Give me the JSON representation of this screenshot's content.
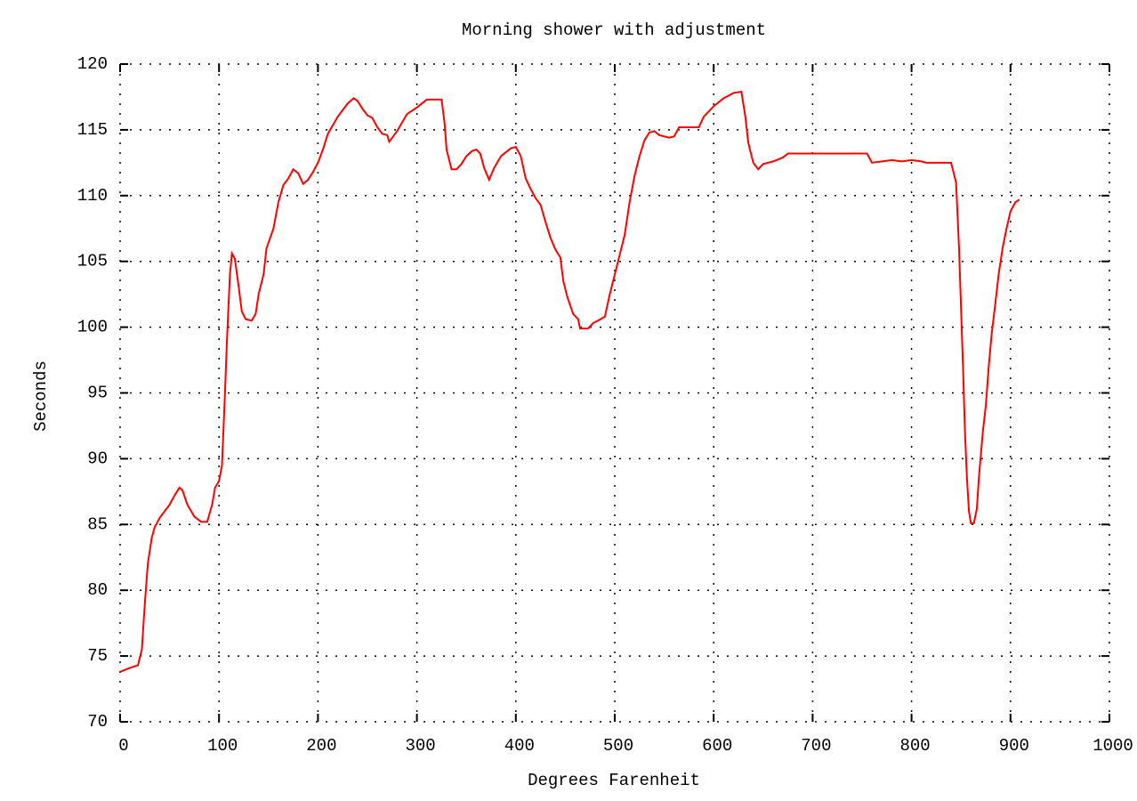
{
  "chart_data": {
    "type": "line",
    "title": "Morning shower with adjustment",
    "x_label": "Degrees Farenheit",
    "y_label": "Seconds",
    "xlim": [
      0,
      1000
    ],
    "xticks": [
      0,
      100,
      200,
      300,
      400,
      500,
      600,
      700,
      800,
      900,
      1000
    ],
    "ylim": [
      70,
      120
    ],
    "yticks": [
      70,
      75,
      80,
      85,
      90,
      95,
      100,
      105,
      110,
      115,
      120
    ],
    "grid": true,
    "color": "#ff0000",
    "x": [
      0,
      10,
      18,
      22,
      25,
      28,
      32,
      35,
      40,
      50,
      55,
      60,
      63,
      68,
      75,
      82,
      88,
      93,
      96,
      100,
      103,
      106,
      108,
      111,
      113,
      116,
      120,
      123,
      127,
      133,
      137,
      140,
      145,
      148,
      155,
      160,
      165,
      170,
      175,
      180,
      185,
      190,
      195,
      200,
      205,
      210,
      220,
      230,
      236,
      240,
      245,
      250,
      255,
      260,
      265,
      270,
      272,
      276,
      280,
      290,
      300,
      305,
      310,
      325,
      328,
      330,
      335,
      340,
      345,
      350,
      356,
      360,
      364,
      368,
      373,
      378,
      385,
      395,
      400,
      405,
      410,
      415,
      420,
      425,
      430,
      435,
      440,
      445,
      448,
      452,
      458,
      463,
      465,
      473,
      478,
      483,
      490,
      495,
      500,
      505,
      510,
      515,
      520,
      525,
      530,
      535,
      540,
      545,
      555,
      560,
      565,
      585,
      590,
      600,
      610,
      620,
      628,
      632,
      635,
      640,
      645,
      650,
      660,
      670,
      675,
      755,
      760,
      770,
      780,
      790,
      800,
      810,
      815,
      840,
      845,
      848,
      850,
      852,
      854,
      856,
      858,
      860,
      863,
      866,
      868,
      872,
      875,
      878,
      881,
      885,
      888,
      892,
      896,
      900,
      905,
      909
    ],
    "values": [
      73.8,
      74.1,
      74.3,
      75.5,
      79,
      82,
      84,
      84.8,
      85.5,
      86.5,
      87.2,
      87.8,
      87.6,
      86.5,
      85.6,
      85.2,
      85.2,
      86.5,
      87.8,
      88.3,
      89.5,
      95,
      99,
      104,
      105.6,
      105.2,
      103,
      101.2,
      100.6,
      100.5,
      101,
      102.5,
      104,
      106,
      107.5,
      109.5,
      110.8,
      111.3,
      112,
      111.7,
      110.9,
      111.2,
      111.8,
      112.5,
      113.5,
      114.7,
      116,
      117,
      117.4,
      117.2,
      116.6,
      116.1,
      115.9,
      115.2,
      114.7,
      114.6,
      114.1,
      114.5,
      114.9,
      116.2,
      116.7,
      117,
      117.3,
      117.3,
      115.5,
      113.5,
      112,
      112,
      112.4,
      113,
      113.4,
      113.5,
      113.2,
      112.1,
      111.2,
      112.1,
      113,
      113.6,
      113.7,
      113,
      111.3,
      110.5,
      109.8,
      109.3,
      108,
      106.8,
      105.9,
      105.3,
      103.5,
      102.3,
      101,
      100.6,
      99.9,
      99.9,
      100.3,
      100.5,
      100.8,
      102.5,
      104,
      105.5,
      107,
      109.5,
      111.5,
      113,
      114.2,
      114.8,
      114.9,
      114.6,
      114.4,
      114.5,
      115.2,
      115.2,
      116,
      116.8,
      117.4,
      117.8,
      117.9,
      116,
      114,
      112.5,
      112,
      112.4,
      112.6,
      112.9,
      113.2,
      113.2,
      112.5,
      112.6,
      112.7,
      112.6,
      112.7,
      112.6,
      112.5,
      112.5,
      111,
      106,
      101.5,
      97,
      92,
      88.5,
      86,
      85.1,
      85.1,
      86.2,
      88.5,
      92,
      94,
      97,
      99.5,
      102,
      104,
      106,
      107.5,
      108.8,
      109.5,
      109.7
    ]
  }
}
